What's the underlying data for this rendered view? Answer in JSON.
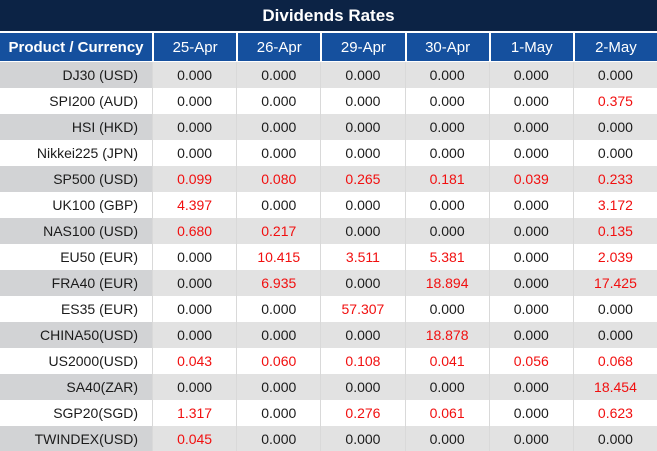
{
  "title": "Dividends Rates",
  "colors": {
    "title_bar_bg": "#0c2345",
    "header_bg": "#15509e",
    "header_text": "#ffffff",
    "row_gray_product": "#d2d3d5",
    "row_gray_values": "#e2e2e2",
    "row_white": "#ffffff",
    "value_black": "#1b1b1b",
    "value_red": "#f10f0f",
    "grid_line": "#d9d9d9"
  },
  "table": {
    "product_header": "Product / Currency",
    "date_columns": [
      "25-Apr",
      "26-Apr",
      "29-Apr",
      "30-Apr",
      "1-May",
      "2-May"
    ],
    "rows": [
      {
        "product": "DJ30 (USD)",
        "values": [
          "0.000",
          "0.000",
          "0.000",
          "0.000",
          "0.000",
          "0.000"
        ],
        "red": [
          false,
          false,
          false,
          false,
          false,
          false
        ]
      },
      {
        "product": "SPI200 (AUD)",
        "values": [
          "0.000",
          "0.000",
          "0.000",
          "0.000",
          "0.000",
          "0.375"
        ],
        "red": [
          false,
          false,
          false,
          false,
          false,
          true
        ]
      },
      {
        "product": "HSI (HKD)",
        "values": [
          "0.000",
          "0.000",
          "0.000",
          "0.000",
          "0.000",
          "0.000"
        ],
        "red": [
          false,
          false,
          false,
          false,
          false,
          false
        ]
      },
      {
        "product": "Nikkei225 (JPN)",
        "values": [
          "0.000",
          "0.000",
          "0.000",
          "0.000",
          "0.000",
          "0.000"
        ],
        "red": [
          false,
          false,
          false,
          false,
          false,
          false
        ]
      },
      {
        "product": "SP500 (USD)",
        "values": [
          "0.099",
          "0.080",
          "0.265",
          "0.181",
          "0.039",
          "0.233"
        ],
        "red": [
          true,
          true,
          true,
          true,
          true,
          true
        ]
      },
      {
        "product": "UK100 (GBP)",
        "values": [
          "4.397",
          "0.000",
          "0.000",
          "0.000",
          "0.000",
          "3.172"
        ],
        "red": [
          true,
          false,
          false,
          false,
          false,
          true
        ]
      },
      {
        "product": "NAS100 (USD)",
        "values": [
          "0.680",
          "0.217",
          "0.000",
          "0.000",
          "0.000",
          "0.135"
        ],
        "red": [
          true,
          true,
          false,
          false,
          false,
          true
        ]
      },
      {
        "product": "EU50 (EUR)",
        "values": [
          "0.000",
          "10.415",
          "3.511",
          "5.381",
          "0.000",
          "2.039"
        ],
        "red": [
          false,
          true,
          true,
          true,
          false,
          true
        ]
      },
      {
        "product": "FRA40 (EUR)",
        "values": [
          "0.000",
          "6.935",
          "0.000",
          "18.894",
          "0.000",
          "17.425"
        ],
        "red": [
          false,
          true,
          false,
          true,
          false,
          true
        ]
      },
      {
        "product": "ES35 (EUR)",
        "values": [
          "0.000",
          "0.000",
          "57.307",
          "0.000",
          "0.000",
          "0.000"
        ],
        "red": [
          false,
          false,
          true,
          false,
          false,
          false
        ]
      },
      {
        "product": "CHINA50(USD)",
        "values": [
          "0.000",
          "0.000",
          "0.000",
          "18.878",
          "0.000",
          "0.000"
        ],
        "red": [
          false,
          false,
          false,
          true,
          false,
          false
        ]
      },
      {
        "product": "US2000(USD)",
        "values": [
          "0.043",
          "0.060",
          "0.108",
          "0.041",
          "0.056",
          "0.068"
        ],
        "red": [
          true,
          true,
          true,
          true,
          true,
          true
        ]
      },
      {
        "product": "SA40(ZAR)",
        "values": [
          "0.000",
          "0.000",
          "0.000",
          "0.000",
          "0.000",
          "18.454"
        ],
        "red": [
          false,
          false,
          false,
          false,
          false,
          true
        ]
      },
      {
        "product": "SGP20(SGD)",
        "values": [
          "1.317",
          "0.000",
          "0.276",
          "0.061",
          "0.000",
          "0.623"
        ],
        "red": [
          true,
          false,
          true,
          true,
          false,
          true
        ]
      },
      {
        "product": "TWINDEX(USD)",
        "values": [
          "0.045",
          "0.000",
          "0.000",
          "0.000",
          "0.000",
          "0.000"
        ],
        "red": [
          true,
          false,
          false,
          false,
          false,
          false
        ]
      }
    ]
  }
}
